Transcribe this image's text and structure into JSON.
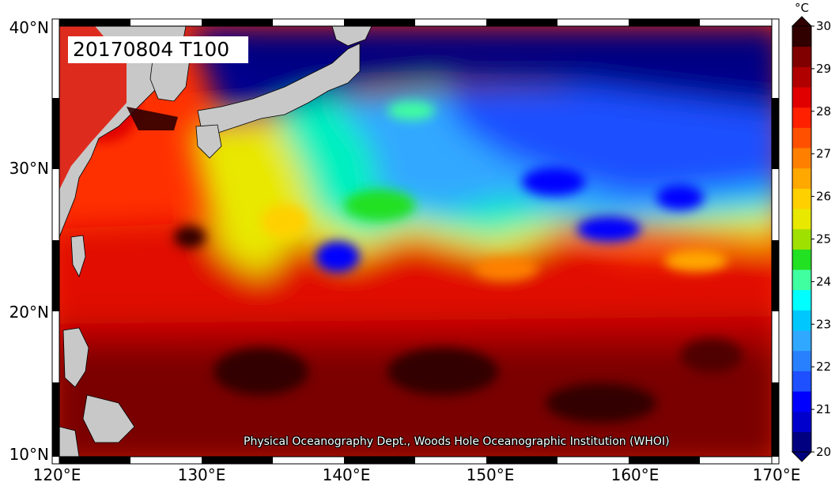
{
  "map": {
    "stamp": "20170804 T100",
    "credit": "Physical Oceanography Dept., Woods Hole Oceanographic Institution (WHOI)",
    "lon_labels": [
      "120°E",
      "130°E",
      "140°E",
      "150°E",
      "160°E",
      "170°E"
    ],
    "lat_labels": [
      "40°N",
      "30°N",
      "20°N",
      "10°N"
    ],
    "land_color": "#c8c8c8"
  },
  "colorbar": {
    "unit": "°C",
    "labels": [
      "20",
      "21",
      "22",
      "23",
      "24",
      "25",
      "26",
      "27",
      "28",
      "29",
      "30"
    ],
    "colors": [
      "#000080",
      "#0000cd",
      "#0000ff",
      "#1e50ff",
      "#2880ff",
      "#30a8ff",
      "#00c8ff",
      "#00ffff",
      "#40ffa0",
      "#22e022",
      "#a0e000",
      "#e8e800",
      "#ffd000",
      "#ffa800",
      "#ff8000",
      "#ff5000",
      "#ff2000",
      "#e00000",
      "#b00000",
      "#800000",
      "#300000"
    ]
  }
}
